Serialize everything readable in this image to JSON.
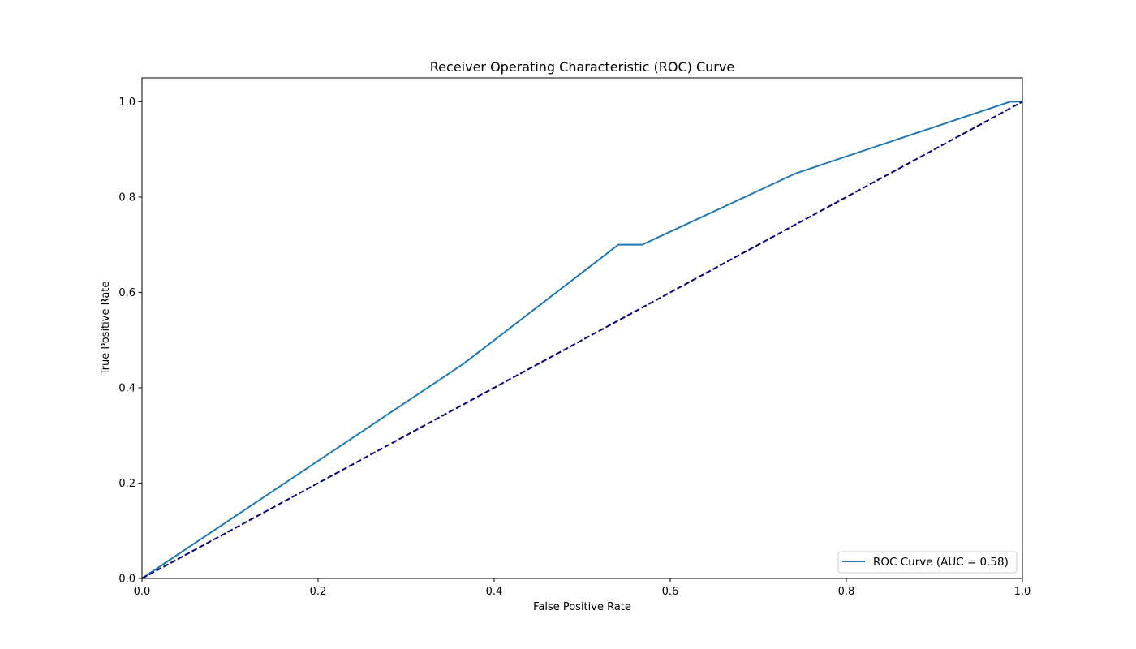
{
  "chart_data": {
    "type": "line",
    "title": "Receiver Operating Characteristic (ROC) Curve",
    "xlabel": "False Positive Rate",
    "ylabel": "True Positive Rate",
    "xlim": [
      0.0,
      1.0
    ],
    "ylim": [
      0.0,
      1.05
    ],
    "x_ticks": [
      "0.0",
      "0.2",
      "0.4",
      "0.6",
      "0.8",
      "1.0"
    ],
    "y_ticks": [
      "0.0",
      "0.2",
      "0.4",
      "0.6",
      "0.8",
      "1.0"
    ],
    "grid": false,
    "legend_position": "lower-right",
    "series": [
      {
        "name": "ROC Curve (AUC = 0.58)",
        "color": "#1f77b4",
        "style": "solid",
        "x": [
          0.0,
          0.365,
          0.541,
          0.568,
          0.743,
          0.986,
          1.0
        ],
        "y": [
          0.0,
          0.45,
          0.7,
          0.7,
          0.85,
          1.0,
          1.0
        ]
      },
      {
        "color": "#000080",
        "style": "dashed",
        "x": [
          0.0,
          1.0
        ],
        "y": [
          0.0,
          1.0
        ]
      }
    ]
  }
}
